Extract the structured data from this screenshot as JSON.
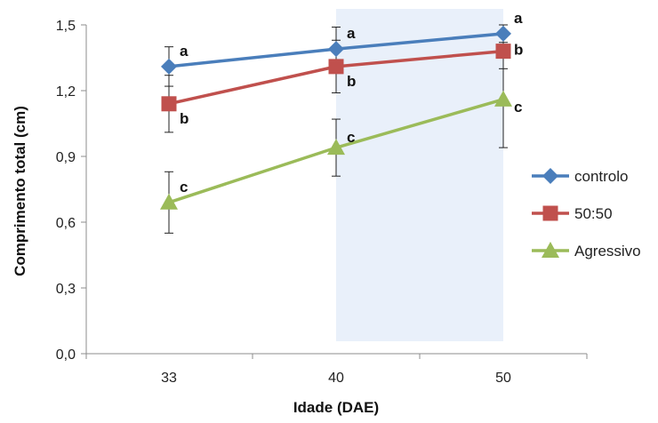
{
  "chart_data": {
    "type": "line",
    "xlabel": "Idade (DAE)",
    "ylabel": "Comprimento total (cm)",
    "categories": [
      "33",
      "40",
      "50"
    ],
    "ylim": [
      0,
      1.5
    ],
    "yticks": [
      "0,0",
      "0,3",
      "0,6",
      "0,9",
      "1,2",
      "1,5"
    ],
    "yticks_values": [
      0,
      0.3,
      0.6,
      0.9,
      1.2,
      1.5
    ],
    "highlight_band": {
      "from_category": "40",
      "to_category": "50",
      "color": "#e9f0fa"
    },
    "legend_placement": "right",
    "grid": false,
    "series": [
      {
        "name": "controlo",
        "color": "#4a7ebb",
        "marker": "diamond",
        "values": [
          1.31,
          1.39,
          1.46
        ],
        "err_high": [
          1.4,
          1.49,
          1.5
        ],
        "err_low": [
          1.22,
          1.3,
          1.42
        ],
        "letters": [
          "a",
          "a",
          "a"
        ]
      },
      {
        "name": "50:50",
        "color": "#c0504d",
        "marker": "square",
        "values": [
          1.14,
          1.31,
          1.38
        ],
        "err_high": [
          1.27,
          1.43,
          1.46
        ],
        "err_low": [
          1.01,
          1.19,
          1.3
        ],
        "letters": [
          "b",
          "b",
          "b"
        ]
      },
      {
        "name": "Agressivo",
        "color": "#9bbb59",
        "marker": "triangle",
        "values": [
          0.69,
          0.94,
          1.16
        ],
        "err_high": [
          0.83,
          1.07,
          1.38
        ],
        "err_low": [
          0.55,
          0.81,
          0.94
        ],
        "letters": [
          "c",
          "c",
          "c"
        ]
      }
    ]
  }
}
